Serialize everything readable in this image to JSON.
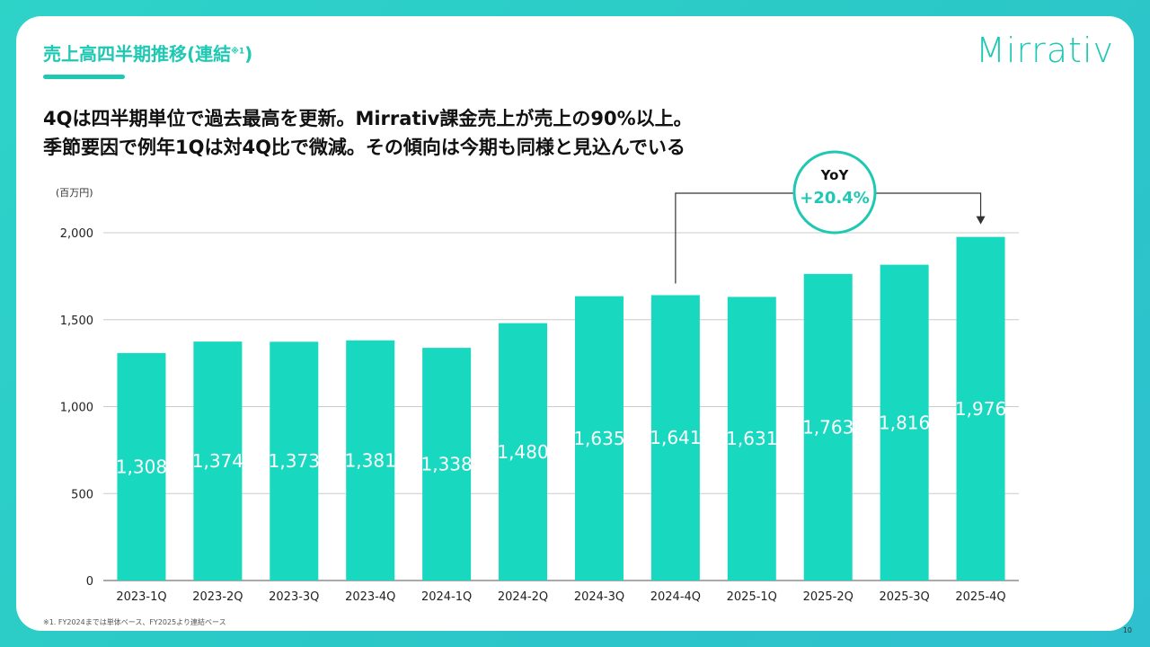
{
  "slide": {
    "section_title": "売上高四半期推移(連結",
    "section_title_note": "※1",
    "section_title_close": ")",
    "logo_text": "Mirrativ",
    "headline_line1": "4Qは四半期単位で過去最高を更新。Mirrativ課金売上が売上の90%以上。",
    "headline_line2": "季節要因で例年1Qは対4Q比で微減。その傾向は今期も同様と見込んでいる",
    "footnote": "※1. FY2024までは単体ベース、FY2025より連結ベース",
    "page_number": "10"
  },
  "colors": {
    "bar": "#19d8c0",
    "accent": "#1fc8b3",
    "grid": "#cccccc",
    "text": "#222222",
    "label": "#ffffff"
  },
  "chart_data": {
    "type": "bar",
    "unit_label": "(百万円)",
    "categories": [
      "2023-1Q",
      "2023-2Q",
      "2023-3Q",
      "2023-4Q",
      "2024-1Q",
      "2024-2Q",
      "2024-3Q",
      "2024-4Q",
      "2025-1Q",
      "2025-2Q",
      "2025-3Q",
      "2025-4Q"
    ],
    "values": [
      1308,
      1374,
      1373,
      1381,
      1338,
      1480,
      1635,
      1641,
      1631,
      1763,
      1816,
      1976
    ],
    "value_labels": [
      "1,308",
      "1,374",
      "1,373",
      "1,381",
      "1,338",
      "1,480",
      "1,635",
      "1,641",
      "1,631",
      "1,763",
      "1,816",
      "1,976"
    ],
    "ylim": [
      0,
      2000
    ],
    "yticks": [
      0,
      500,
      1000,
      1500,
      2000
    ],
    "ytick_labels": [
      "0",
      "500",
      "1,000",
      "1,500",
      "2,000"
    ],
    "grid": true,
    "annotation": {
      "title": "YoY",
      "value": "+20.4%",
      "from_category": "2024-4Q",
      "to_category": "2025-4Q"
    }
  }
}
